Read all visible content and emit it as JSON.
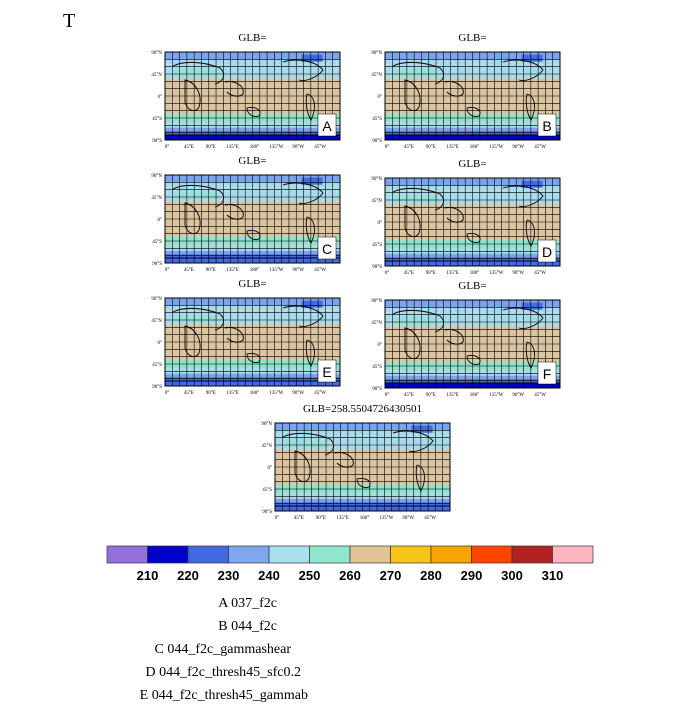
{
  "page_title": "T",
  "chart_data": {
    "type": "map-panels",
    "variable": "T",
    "panels": [
      {
        "label": "A",
        "title": "GLB="
      },
      {
        "label": "B",
        "title": "GLB="
      },
      {
        "label": "C",
        "title": "GLB="
      },
      {
        "label": "D",
        "title": "GLB="
      },
      {
        "label": "E",
        "title": "GLB="
      },
      {
        "label": "F",
        "title": "GLB="
      },
      {
        "label": "",
        "title": "GLB=258.5504726430501"
      }
    ],
    "lat_ticks": [
      "90°N",
      "45°N",
      "0°",
      "45°S",
      "90°S"
    ],
    "lon_ticks": [
      "0°",
      "45°E",
      "90°E",
      "135°E",
      "180°",
      "135°W",
      "90°W",
      "45°W"
    ],
    "colorbar": {
      "levels": [
        "210",
        "220",
        "230",
        "240",
        "250",
        "260",
        "270",
        "280",
        "290",
        "300",
        "310"
      ],
      "colors": [
        "#9370db",
        "#0000cd",
        "#4169e1",
        "#7fa6ee",
        "#aadfee",
        "#8fe6cc",
        "#e2c496",
        "#f5c518",
        "#f7a400",
        "#ff4500",
        "#b22222",
        "#ffb6c1"
      ]
    },
    "map_band_colors": {
      "tropics": "#dcc4a0",
      "subtropics": "#90e4cc",
      "midlat": "#a8dcec",
      "polar": "#7aa4ec",
      "deep_polar": "#4468e0",
      "coldest": "#0000c8"
    }
  },
  "legend": [
    "A  037_f2c",
    "B  044_f2c",
    "C  044_f2c_gammashear",
    "D  044_f2c_thresh45_sfc0.2",
    "E  044_f2c_thresh45_gammab"
  ]
}
